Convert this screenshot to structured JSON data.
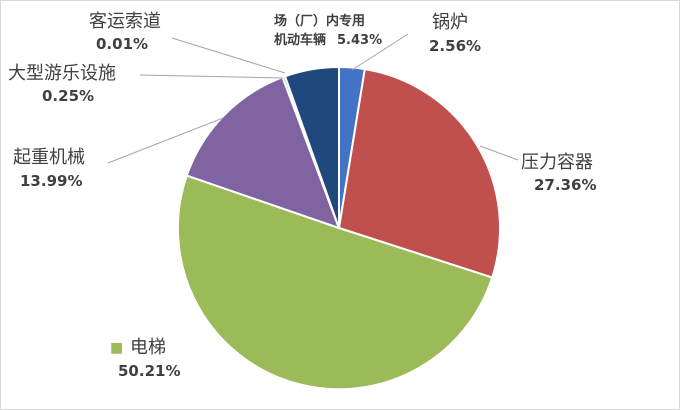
{
  "chart_data": {
    "type": "pie",
    "title": "",
    "slices": [
      {
        "name": "锅炉",
        "value": 2.56,
        "label": "2.56%",
        "color": "#4472c4"
      },
      {
        "name": "压力容器",
        "value": 27.36,
        "label": "27.36%",
        "color": "#c0504d"
      },
      {
        "name": "电梯",
        "value": 50.21,
        "label": "50.21%",
        "color": "#9bbb59"
      },
      {
        "name": "起重机械",
        "value": 13.99,
        "label": "13.99%",
        "color": "#8064a2"
      },
      {
        "name": "大型游乐设施",
        "value": 0.25,
        "label": "0.25%",
        "color": "#4bacc6"
      },
      {
        "name": "客运索道",
        "value": 0.01,
        "label": "0.01%",
        "color": "#f79646"
      },
      {
        "name": "场（厂）内专用机动车辆",
        "name_line1": "场（厂）内专用",
        "name_line2": "机动车辆",
        "value": 5.43,
        "label": "5.43%",
        "color": "#1f497d"
      }
    ],
    "legend": "none"
  }
}
